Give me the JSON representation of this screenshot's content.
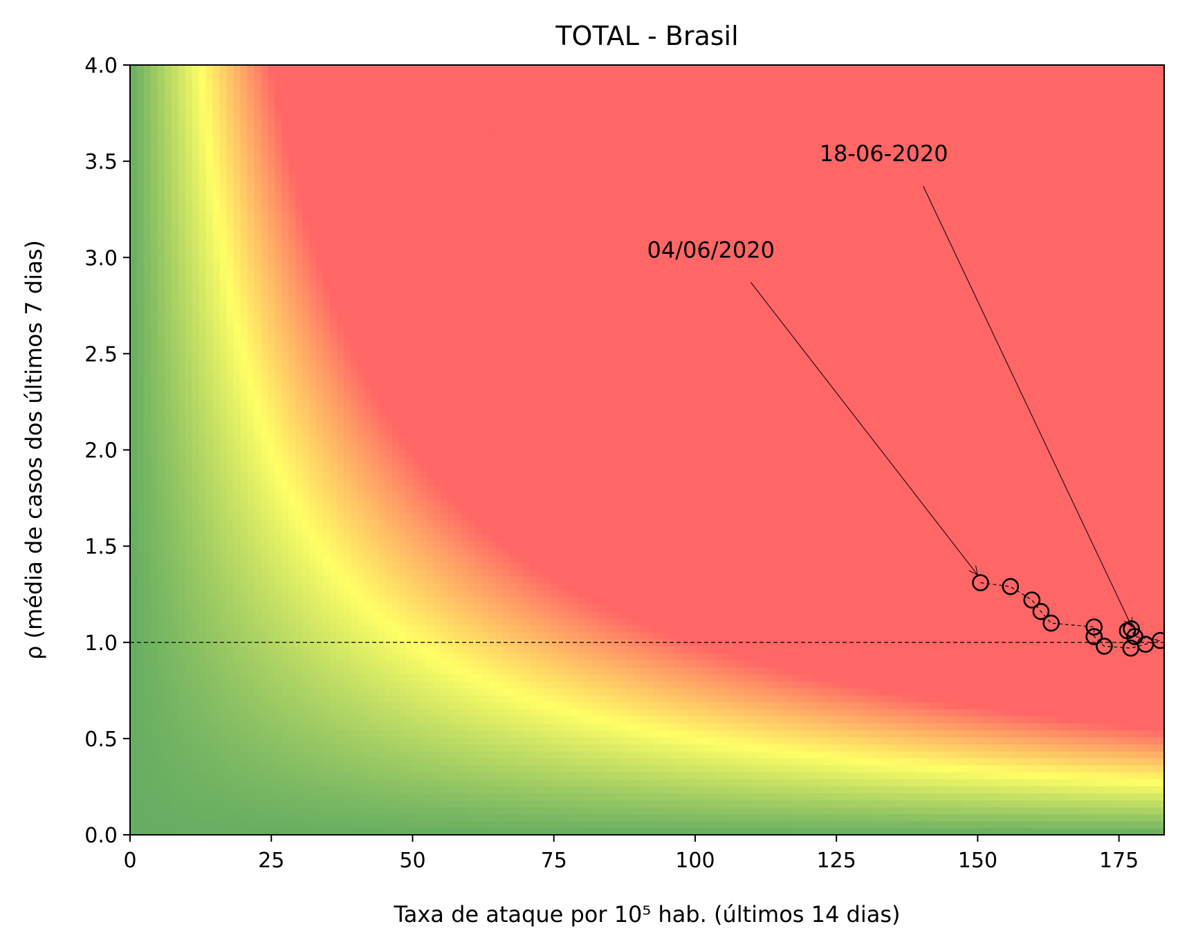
{
  "chart_data": {
    "type": "scatter",
    "title": "TOTAL - Brasil",
    "xlabel": "Taxa de ataque por 10⁵ hab. (últimos 14 dias)",
    "ylabel": "ρ (média de casos dos últimos 7 dias)",
    "xlim": [
      0,
      183
    ],
    "ylim": [
      0,
      4.0
    ],
    "x_ticks": [
      "0",
      "25",
      "50",
      "75",
      "100",
      "125",
      "150",
      "175"
    ],
    "y_ticks": [
      "0.0",
      "0.5",
      "1.0",
      "1.5",
      "2.0",
      "2.5",
      "3.0",
      "3.5",
      "4.0"
    ],
    "x_tick_values": [
      0,
      25,
      50,
      75,
      100,
      125,
      150,
      175
    ],
    "y_tick_values": [
      0,
      0.5,
      1.0,
      1.5,
      2.0,
      2.5,
      3.0,
      3.5,
      4.0
    ],
    "reference_line": {
      "y": 1.0,
      "style": "dashed"
    },
    "background": "risk heatmap: green (low) → yellow → red (high), contours along x·ρ = constant",
    "colors": {
      "low": "#66ad62",
      "mid": "#ffff66",
      "high": "#ff6666"
    },
    "series": [
      {
        "marker": "open circle",
        "connected": "dashed line",
        "points": [
          {
            "x": 150.5,
            "y": 1.31
          },
          {
            "x": 155.8,
            "y": 1.29
          },
          {
            "x": 159.6,
            "y": 1.22
          },
          {
            "x": 161.2,
            "y": 1.16
          },
          {
            "x": 163.0,
            "y": 1.1
          },
          {
            "x": 170.6,
            "y": 1.08
          },
          {
            "x": 170.6,
            "y": 1.03
          },
          {
            "x": 172.4,
            "y": 0.98
          },
          {
            "x": 177.1,
            "y": 0.97
          },
          {
            "x": 179.7,
            "y": 0.99
          },
          {
            "x": 182.3,
            "y": 1.01
          },
          {
            "x": 177.8,
            "y": 1.03
          },
          {
            "x": 177.2,
            "y": 1.07
          },
          {
            "x": 176.5,
            "y": 1.06
          }
        ]
      }
    ],
    "annotations": [
      {
        "text": "04/06/2020",
        "target": {
          "x": 150.0,
          "y": 1.35
        },
        "text_at": {
          "x": 91.5,
          "y": 3.0
        }
      },
      {
        "text": "18-06-2020",
        "target": {
          "x": 177.3,
          "y": 1.08
        },
        "text_at": {
          "x": 122.0,
          "y": 3.5
        }
      }
    ]
  }
}
